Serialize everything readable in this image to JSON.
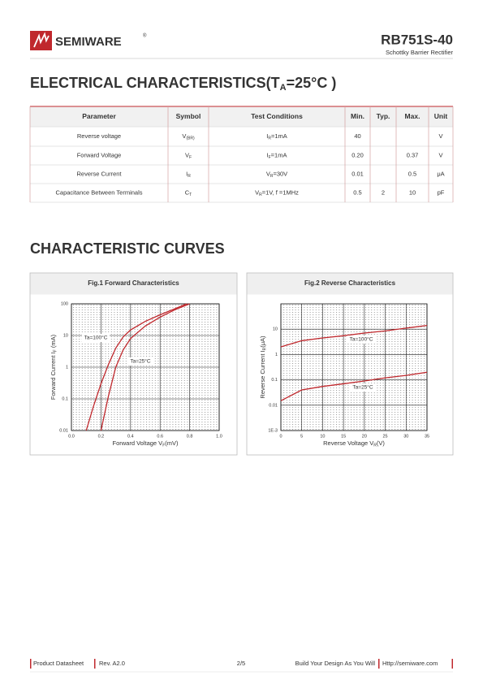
{
  "header": {
    "brand": "SEMIWARE",
    "registered": "®",
    "part_number": "RB751S-40",
    "subtitle": "Schottky Barrier Rectifier"
  },
  "electrical": {
    "title": {
      "base": "ELECTRICAL CHARACTERISTICS(T",
      "sub": "A",
      "rest": "=25°C )"
    },
    "columns": [
      "Parameter",
      "Symbol",
      "Test Conditions",
      "Min.",
      "Typ.",
      "Max.",
      "Unit"
    ],
    "rows": [
      {
        "parameter": "Reverse voltage",
        "symbol": {
          "base": "V",
          "sub": "(BR)"
        },
        "condition": {
          "base": "I",
          "sub": "R",
          "rest": "=1mA"
        },
        "min": "40",
        "typ": null,
        "max": null,
        "unit": "V"
      },
      {
        "parameter": "Forward Voltage",
        "symbol": {
          "base": "V",
          "sub": "F"
        },
        "condition": {
          "base": "I",
          "sub": "F",
          "rest": "=1mA"
        },
        "min": "0.20",
        "typ": null,
        "max": "0.37",
        "unit": "V"
      },
      {
        "parameter": "Reverse Current",
        "symbol": {
          "base": "I",
          "sub": "R"
        },
        "condition": {
          "base": "V",
          "sub": "R",
          "rest": "=30V"
        },
        "min": "0.01",
        "typ": null,
        "max": "0.5",
        "unit": "μA"
      },
      {
        "parameter": "Capacitance Between Terminals",
        "symbol": {
          "base": "C",
          "sub": "T"
        },
        "condition": {
          "base": "V",
          "sub": "R",
          "rest": "=1V, f =1MHz"
        },
        "min": "0.5",
        "typ": "2",
        "max": "10",
        "unit": "pF"
      }
    ]
  },
  "curves_title": "CHARACTERISTIC CURVES",
  "chart_data": [
    {
      "type": "line",
      "title": "Fig.1 Forward Characteristics",
      "x_label": {
        "base": "Forward Voltage V",
        "sub": "F",
        "rest": "(mV)"
      },
      "y_label": {
        "base": "Forward Current I",
        "sub": "F",
        "rest": " (mA)"
      },
      "xlim": [
        0,
        1
      ],
      "xticks": [
        {
          "value": 0,
          "label": "0.0"
        },
        0.2,
        0.4,
        0.6,
        0.8,
        {
          "value": 1,
          "label": "1.0"
        }
      ],
      "ylim": [
        0.01,
        100
      ],
      "yticks": [
        0.01,
        0.1,
        1,
        10,
        100
      ],
      "log_y": true,
      "grid": true,
      "series": [
        {
          "name": "Ta=100°C",
          "color": "#c0282d",
          "x": [
            0.1,
            0.15,
            0.2,
            0.25,
            0.3,
            0.35,
            0.4,
            0.5,
            0.6,
            0.7,
            0.78
          ],
          "values": [
            0.01,
            0.06,
            0.3,
            1.2,
            4,
            9,
            15,
            28,
            45,
            70,
            100
          ]
        },
        {
          "name": "Ta=25°C",
          "color": "#c0282d",
          "x": [
            0.2,
            0.25,
            0.3,
            0.35,
            0.4,
            0.5,
            0.6,
            0.7,
            0.8
          ],
          "values": [
            0.01,
            0.12,
            1,
            3.5,
            8,
            20,
            38,
            65,
            100
          ]
        }
      ]
    },
    {
      "type": "line",
      "title": "Fig.2 Reverse Characteristics",
      "x_label": {
        "base": "Reverse Voltage V",
        "sub": "R",
        "rest": "(V)"
      },
      "y_label": {
        "base": "Reverse Current  I",
        "sub": "R",
        "rest": "(μA)"
      },
      "xlim": [
        0,
        35
      ],
      "xticks": [
        0,
        5,
        10,
        15,
        20,
        25,
        30,
        35
      ],
      "ylim": [
        0.001,
        100
      ],
      "yticks": [
        {
          "value": 0.001,
          "label": "1E-3"
        },
        0.01,
        0.1,
        1,
        10
      ],
      "log_y": true,
      "grid": true,
      "series": [
        {
          "name": "Ta=100°C",
          "color": "#c0282d",
          "x": [
            0,
            5,
            10,
            15,
            20,
            25,
            30,
            35
          ],
          "values": [
            2,
            3.5,
            4.5,
            5.5,
            7,
            8.5,
            11,
            14
          ]
        },
        {
          "name": "Ta=25°C",
          "color": "#c0282d",
          "x": [
            0,
            5,
            10,
            15,
            20,
            25,
            30,
            35
          ],
          "values": [
            0.015,
            0.04,
            0.055,
            0.07,
            0.09,
            0.12,
            0.15,
            0.2
          ]
        }
      ]
    }
  ],
  "footer": {
    "doc_type": "Product Datasheet",
    "revision": "Rev. A2.0",
    "page": "2/5",
    "slogan": "Build Your Design As You Will",
    "url": "Http://semiware.com"
  }
}
